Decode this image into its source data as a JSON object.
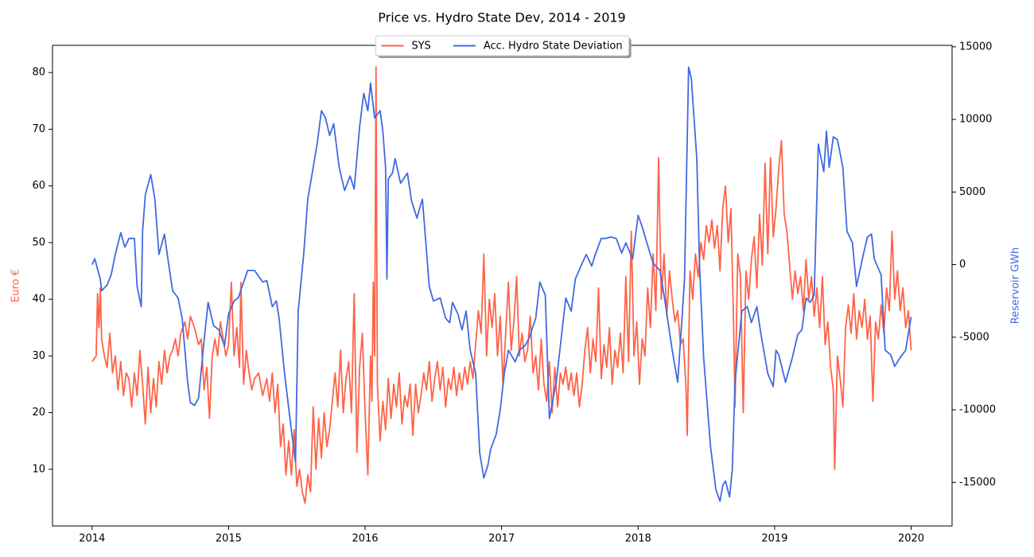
{
  "chart_data": {
    "type": "line",
    "title": "Price vs. Hydro State Dev, 2014 - 2019",
    "ylabel": "Euro €",
    "y2label": "Reservoir GWh",
    "xlim": [
      2013.71,
      2020.3
    ],
    "xticks": [
      2014,
      2015,
      2016,
      2017,
      2018,
      2019,
      2020
    ],
    "ylim": [
      0,
      84.8
    ],
    "yticks": [
      10,
      20,
      30,
      40,
      50,
      60,
      70,
      80
    ],
    "y2lim": [
      -18000,
      15100
    ],
    "y2ticks": [
      -15000,
      -10000,
      -5000,
      0,
      5000,
      10000,
      15000
    ],
    "legend": "upper center",
    "series": [
      {
        "name": "SYS",
        "color": "#ff6347",
        "axis": "y",
        "x": [
          2014.0,
          2014.03,
          2014.04,
          2014.05,
          2014.06,
          2014.07,
          2014.09,
          2014.11,
          2014.13,
          2014.15,
          2014.17,
          2014.19,
          2014.21,
          2014.23,
          2014.25,
          2014.27,
          2014.29,
          2014.31,
          2014.33,
          2014.35,
          2014.37,
          2014.39,
          2014.41,
          2014.43,
          2014.45,
          2014.47,
          2014.49,
          2014.51,
          2014.53,
          2014.55,
          2014.57,
          2014.59,
          2014.61,
          2014.63,
          2014.65,
          2014.68,
          2014.7,
          2014.72,
          2014.75,
          2014.78,
          2014.8,
          2014.82,
          2014.84,
          2014.86,
          2014.88,
          2014.9,
          2014.92,
          2014.94,
          2014.96,
          2014.98,
          2015.0,
          2015.02,
          2015.04,
          2015.06,
          2015.08,
          2015.09,
          2015.11,
          2015.13,
          2015.15,
          2015.17,
          2015.19,
          2015.22,
          2015.25,
          2015.28,
          2015.3,
          2015.32,
          2015.34,
          2015.36,
          2015.38,
          2015.4,
          2015.42,
          2015.44,
          2015.46,
          2015.48,
          2015.5,
          2015.52,
          2015.54,
          2015.56,
          2015.58,
          2015.6,
          2015.62,
          2015.64,
          2015.66,
          2015.68,
          2015.7,
          2015.72,
          2015.74,
          2015.76,
          2015.78,
          2015.8,
          2015.82,
          2015.84,
          2015.86,
          2015.88,
          2015.9,
          2015.92,
          2015.94,
          2015.96,
          2015.98,
          2016.0,
          2016.02,
          2016.04,
          2016.05,
          2016.06,
          2016.07,
          2016.08,
          2016.09,
          2016.11,
          2016.13,
          2016.15,
          2016.17,
          2016.19,
          2016.21,
          2016.23,
          2016.25,
          2016.27,
          2016.29,
          2016.31,
          2016.33,
          2016.35,
          2016.37,
          2016.39,
          2016.41,
          2016.43,
          2016.45,
          2016.47,
          2016.49,
          2016.51,
          2016.53,
          2016.55,
          2016.57,
          2016.59,
          2016.61,
          2016.63,
          2016.65,
          2016.67,
          2016.69,
          2016.71,
          2016.73,
          2016.75,
          2016.77,
          2016.79,
          2016.81,
          2016.83,
          2016.85,
          2016.87,
          2016.89,
          2016.91,
          2016.93,
          2016.95,
          2016.97,
          2016.99,
          2017.01,
          2017.03,
          2017.05,
          2017.07,
          2017.09,
          2017.11,
          2017.13,
          2017.15,
          2017.17,
          2017.19,
          2017.21,
          2017.23,
          2017.25,
          2017.27,
          2017.29,
          2017.31,
          2017.33,
          2017.35,
          2017.37,
          2017.39,
          2017.41,
          2017.43,
          2017.45,
          2017.47,
          2017.49,
          2017.51,
          2017.53,
          2017.55,
          2017.57,
          2017.59,
          2017.61,
          2017.63,
          2017.65,
          2017.67,
          2017.69,
          2017.71,
          2017.73,
          2017.75,
          2017.77,
          2017.79,
          2017.81,
          2017.83,
          2017.85,
          2017.87,
          2017.89,
          2017.91,
          2017.93,
          2017.95,
          2017.97,
          2017.99,
          2018.01,
          2018.03,
          2018.05,
          2018.07,
          2018.09,
          2018.11,
          2018.13,
          2018.15,
          2018.17,
          2018.19,
          2018.21,
          2018.23,
          2018.25,
          2018.27,
          2018.29,
          2018.31,
          2018.33,
          2018.35,
          2018.36,
          2018.38,
          2018.4,
          2018.42,
          2018.44,
          2018.46,
          2018.48,
          2018.5,
          2018.52,
          2018.54,
          2018.56,
          2018.58,
          2018.6,
          2018.62,
          2018.64,
          2018.66,
          2018.68,
          2018.7,
          2018.71,
          2018.73,
          2018.75,
          2018.77,
          2018.79,
          2018.81,
          2018.83,
          2018.85,
          2018.87,
          2018.89,
          2018.91,
          2018.93,
          2018.95,
          2018.97,
          2018.99,
          2019.01,
          2019.03,
          2019.05,
          2019.07,
          2019.09,
          2019.11,
          2019.13,
          2019.15,
          2019.17,
          2019.19,
          2019.21,
          2019.23,
          2019.25,
          2019.27,
          2019.29,
          2019.31,
          2019.33,
          2019.35,
          2019.37,
          2019.39,
          2019.41,
          2019.43,
          2019.44,
          2019.46,
          2019.48,
          2019.5,
          2019.52,
          2019.54,
          2019.56,
          2019.58,
          2019.6,
          2019.62,
          2019.64,
          2019.66,
          2019.68,
          2019.7,
          2019.72,
          2019.74,
          2019.76,
          2019.78,
          2019.8,
          2019.82,
          2019.84,
          2019.86,
          2019.88,
          2019.9,
          2019.92,
          2019.94,
          2019.96,
          2019.98,
          2020.0
        ],
        "values": [
          29,
          30,
          41,
          35,
          42,
          33,
          30,
          28,
          34,
          27,
          30,
          24,
          29,
          23,
          27,
          26,
          21,
          27,
          23,
          31,
          25,
          18,
          28,
          20,
          26,
          21,
          29,
          25,
          31,
          27,
          30,
          31,
          33,
          30,
          34,
          36,
          33,
          37,
          35,
          32,
          33,
          24,
          28,
          19,
          30,
          33,
          30,
          36,
          33,
          30,
          32,
          43,
          30,
          35,
          28,
          43,
          25,
          31,
          27,
          24,
          26,
          27,
          23,
          26,
          22,
          27,
          20,
          25,
          14,
          18,
          9,
          15,
          9,
          17,
          7,
          10,
          6,
          4,
          9,
          6,
          21,
          10,
          19,
          12,
          20,
          14,
          17,
          22,
          27,
          21,
          31,
          20,
          26,
          29,
          20,
          41,
          13,
          28,
          34,
          20,
          9,
          30,
          22,
          43,
          30,
          81,
          25,
          15,
          22,
          17,
          26,
          19,
          25,
          21,
          27,
          18,
          23,
          21,
          25,
          16,
          25,
          20,
          23,
          27,
          24,
          29,
          22,
          26,
          29,
          24,
          28,
          21,
          26,
          24,
          28,
          23,
          27,
          24,
          28,
          25,
          29,
          26,
          32,
          38,
          34,
          48,
          30,
          40,
          35,
          41,
          30,
          37,
          25,
          34,
          43,
          31,
          36,
          44,
          30,
          34,
          29,
          31,
          37,
          27,
          30,
          24,
          33,
          25,
          22,
          29,
          20,
          28,
          21,
          27,
          25,
          28,
          24,
          27,
          23,
          27,
          21,
          25,
          31,
          35,
          27,
          33,
          29,
          42,
          26,
          32,
          28,
          35,
          25,
          31,
          28,
          34,
          27,
          44,
          29,
          52,
          30,
          36,
          25,
          33,
          30,
          42,
          35,
          48,
          38,
          65,
          40,
          48,
          37,
          45,
          40,
          36,
          38,
          32,
          33,
          25,
          16,
          45,
          40,
          48,
          44,
          50,
          47,
          53,
          50,
          54,
          49,
          53,
          45,
          56,
          60,
          50,
          56,
          35,
          21,
          48,
          44,
          20,
          45,
          40,
          47,
          51,
          42,
          55,
          46,
          64,
          48,
          65,
          51,
          56,
          63,
          68,
          55,
          52,
          46,
          40,
          45,
          41,
          44,
          38,
          47,
          40,
          44,
          37,
          42,
          35,
          44,
          32,
          36,
          28,
          24,
          10,
          30,
          26,
          21,
          35,
          39,
          34,
          41,
          33,
          38,
          35,
          40,
          33,
          37,
          22,
          36,
          33,
          39,
          34,
          42,
          38,
          52,
          40,
          45,
          38,
          42,
          35,
          38,
          31
        ]
      },
      {
        "name": "Acc. Hydro State Deviation",
        "color": "#4169e1",
        "axis": "y2",
        "x": [
          2014.0,
          2014.02,
          2014.06,
          2014.07,
          2014.11,
          2014.14,
          2014.17,
          2014.21,
          2014.24,
          2014.27,
          2014.31,
          2014.33,
          2014.36,
          2014.37,
          2014.39,
          2014.43,
          2014.46,
          2014.49,
          2014.53,
          2014.56,
          2014.59,
          2014.63,
          2014.66,
          2014.7,
          2014.72,
          2014.75,
          2014.78,
          2014.82,
          2014.85,
          2014.89,
          2014.93,
          2014.97,
          2015.0,
          2015.04,
          2015.07,
          2015.14,
          2015.19,
          2015.25,
          2015.28,
          2015.32,
          2015.35,
          2015.37,
          2015.41,
          2015.46,
          2015.49,
          2015.51,
          2015.55,
          2015.58,
          2015.62,
          2015.65,
          2015.68,
          2015.71,
          2015.74,
          2015.77,
          2015.81,
          2015.85,
          2015.89,
          2015.92,
          2015.96,
          2015.99,
          2016.02,
          2016.04,
          2016.07,
          2016.11,
          2016.13,
          2016.15,
          2016.16,
          2016.17,
          2016.2,
          2016.22,
          2016.26,
          2016.31,
          2016.34,
          2016.38,
          2016.4,
          2016.42,
          2016.47,
          2016.5,
          2016.55,
          2016.59,
          2016.62,
          2016.64,
          2016.68,
          2016.71,
          2016.74,
          2016.77,
          2016.81,
          2016.84,
          2016.87,
          2016.9,
          2016.92,
          2016.96,
          2016.99,
          2017.02,
          2017.05,
          2017.1,
          2017.13,
          2017.17,
          2017.2,
          2017.25,
          2017.28,
          2017.32,
          2017.35,
          2017.4,
          2017.44,
          2017.47,
          2017.51,
          2017.54,
          2017.59,
          2017.62,
          2017.66,
          2017.69,
          2017.73,
          2017.76,
          2017.8,
          2017.84,
          2017.88,
          2017.91,
          2017.96,
          2018.0,
          2018.03,
          2018.08,
          2018.11,
          2018.16,
          2018.19,
          2018.25,
          2018.29,
          2018.32,
          2018.34,
          2018.37,
          2018.39,
          2018.43,
          2018.45,
          2018.48,
          2018.53,
          2018.57,
          2018.6,
          2018.62,
          2018.64,
          2018.67,
          2018.69,
          2018.71,
          2018.76,
          2018.8,
          2018.83,
          2018.87,
          2018.9,
          2018.95,
          2018.99,
          2019.01,
          2019.03,
          2019.08,
          2019.13,
          2019.17,
          2019.2,
          2019.23,
          2019.26,
          2019.29,
          2019.32,
          2019.36,
          2019.38,
          2019.4,
          2019.43,
          2019.46,
          2019.5,
          2019.53,
          2019.57,
          2019.6,
          2019.65,
          2019.68,
          2019.71,
          2019.73,
          2019.78,
          2019.81,
          2019.85,
          2019.88,
          2019.92,
          2019.96,
          2020.0
        ],
        "values": [
          0,
          400,
          -1000,
          -1800,
          -1400,
          -700,
          700,
          2200,
          1200,
          1800,
          1800,
          -1500,
          -2900,
          2300,
          4800,
          6200,
          4500,
          700,
          2100,
          100,
          -1800,
          -2300,
          -3700,
          -8100,
          -9500,
          -9700,
          -9200,
          -5300,
          -2600,
          -4200,
          -4500,
          -5600,
          -3400,
          -2500,
          -2300,
          -400,
          -400,
          -1200,
          -1100,
          -2900,
          -2500,
          -3700,
          -7500,
          -11400,
          -13600,
          -3200,
          700,
          4500,
          6700,
          8400,
          10600,
          10100,
          8900,
          9700,
          6700,
          5100,
          6100,
          5200,
          9500,
          11800,
          10600,
          12500,
          10100,
          10600,
          9200,
          6700,
          -1000,
          5900,
          6300,
          7300,
          5600,
          6300,
          4400,
          3200,
          3900,
          4500,
          -1500,
          -2500,
          -2300,
          -3700,
          -4000,
          -2600,
          -3400,
          -4500,
          -3200,
          -5900,
          -7500,
          -13000,
          -14700,
          -13800,
          -12700,
          -11700,
          -10000,
          -7500,
          -5900,
          -6700,
          -5900,
          -5600,
          -5100,
          -3700,
          -1200,
          -2100,
          -10600,
          -8100,
          -4800,
          -2300,
          -3200,
          -1000,
          100,
          700,
          -100,
          800,
          1800,
          1800,
          1900,
          1800,
          800,
          1500,
          400,
          3400,
          2600,
          1000,
          100,
          -400,
          -2100,
          -5900,
          -8100,
          -3900,
          -1000,
          13600,
          12800,
          7300,
          -100,
          -6400,
          -12500,
          -15500,
          -16300,
          -15200,
          -14900,
          -16000,
          -14100,
          -8100,
          -3200,
          -2900,
          -4000,
          -2900,
          -4800,
          -7500,
          -8400,
          -5900,
          -6200,
          -8100,
          -6400,
          -4800,
          -4500,
          -2300,
          -2600,
          -2100,
          8300,
          6400,
          9200,
          6700,
          8800,
          8600,
          6700,
          2300,
          1500,
          -1500,
          700,
          1900,
          2100,
          400,
          -700,
          -5900,
          -6200,
          -7000,
          -6400,
          -5900,
          -3600
        ]
      }
    ]
  }
}
